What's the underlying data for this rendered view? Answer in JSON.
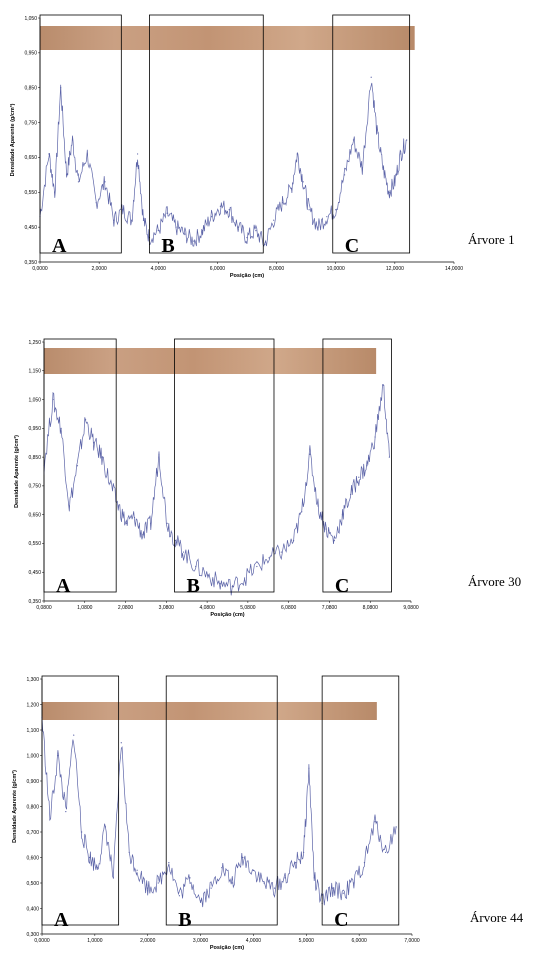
{
  "chart_data": [
    {
      "type": "line",
      "title": "",
      "xlabel": "Posição (cm)",
      "ylabel": "Densidade Aparente (g/cm³)",
      "xlim": [
        0,
        14
      ],
      "ylim": [
        0.35,
        1.05
      ],
      "xticks": [
        "0,0000",
        "2,0000",
        "4,0000",
        "6,0000",
        "8,0000",
        "10,0000",
        "12,0000",
        "14,0000"
      ],
      "yticks": [
        "0,350",
        "0,450",
        "0,550",
        "0,650",
        "0,750",
        "0,850",
        "0,950",
        "1,050"
      ],
      "tree_label": "Árvore 1",
      "regions": [
        {
          "label": "A",
          "x_start": 0.0,
          "x_end": 2.75
        },
        {
          "label": "B",
          "x_start": 3.7,
          "x_end": 7.55
        },
        {
          "label": "C",
          "x_start": 9.9,
          "x_end": 12.5
        }
      ],
      "x": [
        0.0,
        0.3,
        0.5,
        0.7,
        0.9,
        1.1,
        1.3,
        1.6,
        1.9,
        2.2,
        2.5,
        2.8,
        3.1,
        3.3,
        3.5,
        3.7,
        4.0,
        4.3,
        4.6,
        4.9,
        5.2,
        5.5,
        5.8,
        6.1,
        6.4,
        6.7,
        7.0,
        7.3,
        7.6,
        7.9,
        8.2,
        8.5,
        8.7,
        8.9,
        9.1,
        9.4,
        9.7,
        10.0,
        10.3,
        10.6,
        10.9,
        11.2,
        11.4,
        11.6,
        11.8,
        12.0,
        12.2,
        12.4
      ],
      "series": [
        {
          "values": [
            0.48,
            0.66,
            0.55,
            0.85,
            0.6,
            0.7,
            0.58,
            0.66,
            0.52,
            0.58,
            0.47,
            0.5,
            0.47,
            0.66,
            0.47,
            0.42,
            0.44,
            0.49,
            0.45,
            0.43,
            0.41,
            0.44,
            0.48,
            0.51,
            0.5,
            0.45,
            0.42,
            0.44,
            0.4,
            0.47,
            0.52,
            0.56,
            0.66,
            0.58,
            0.5,
            0.45,
            0.48,
            0.5,
            0.6,
            0.7,
            0.62,
            0.88,
            0.72,
            0.62,
            0.55,
            0.58,
            0.66,
            0.7
          ]
        }
      ]
    },
    {
      "type": "line",
      "title": "",
      "xlabel": "Posição (cm)",
      "ylabel": "Densidade Aparente (g/cm³)",
      "xlim": [
        0.08,
        9.08
      ],
      "ylim": [
        0.35,
        1.25
      ],
      "xticks": [
        "0,0800",
        "1,0800",
        "2,0800",
        "3,0800",
        "4,0800",
        "5,0800",
        "6,0800",
        "7,0800",
        "8,0800",
        "9,0800"
      ],
      "yticks": [
        "0,350",
        "0,450",
        "0,550",
        "0,650",
        "0,750",
        "0,850",
        "0,950",
        "1,050",
        "1,150",
        "1,250"
      ],
      "tree_label": "Árvore 30",
      "regions": [
        {
          "label": "A",
          "x_start": 0.08,
          "x_end": 1.85
        },
        {
          "label": "B",
          "x_start": 3.28,
          "x_end": 5.72
        },
        {
          "label": "C",
          "x_start": 6.92,
          "x_end": 8.6
        }
      ],
      "x": [
        0.08,
        0.3,
        0.5,
        0.7,
        0.9,
        1.1,
        1.3,
        1.5,
        1.7,
        1.9,
        2.1,
        2.3,
        2.5,
        2.7,
        2.9,
        3.1,
        3.3,
        3.5,
        3.8,
        4.1,
        4.4,
        4.7,
        5.0,
        5.3,
        5.6,
        5.9,
        6.2,
        6.4,
        6.6,
        6.8,
        7.0,
        7.2,
        7.4,
        7.6,
        7.8,
        8.0,
        8.2,
        8.4,
        8.55
      ],
      "series": [
        {
          "values": [
            0.82,
            1.05,
            0.95,
            0.68,
            0.82,
            0.98,
            0.9,
            0.85,
            0.76,
            0.68,
            0.62,
            0.64,
            0.58,
            0.62,
            0.86,
            0.62,
            0.56,
            0.52,
            0.47,
            0.44,
            0.41,
            0.4,
            0.43,
            0.47,
            0.5,
            0.52,
            0.56,
            0.66,
            0.86,
            0.68,
            0.6,
            0.56,
            0.65,
            0.72,
            0.78,
            0.82,
            0.92,
            1.1,
            0.85
          ]
        }
      ]
    },
    {
      "type": "line",
      "title": "",
      "xlabel": "Posição (cm)",
      "ylabel": "Densidade Aparente (g/cm³)",
      "xlim": [
        0,
        7
      ],
      "ylim": [
        0.3,
        1.3
      ],
      "xticks": [
        "0,0000",
        "1,0000",
        "2,0000",
        "3,0000",
        "4,0000",
        "5,0000",
        "6,0000",
        "7,0000"
      ],
      "yticks": [
        "0,300",
        "0,400",
        "0,500",
        "0,600",
        "0,700",
        "0,800",
        "0,900",
        "1,000",
        "1,100",
        "1,200",
        "1,300"
      ],
      "tree_label": "Árvore 44",
      "regions": [
        {
          "label": "A",
          "x_start": 0.0,
          "x_end": 1.45
        },
        {
          "label": "B",
          "x_start": 2.35,
          "x_end": 4.45
        },
        {
          "label": "C",
          "x_start": 5.3,
          "x_end": 6.75
        }
      ],
      "x": [
        0.0,
        0.15,
        0.3,
        0.45,
        0.6,
        0.75,
        0.9,
        1.05,
        1.2,
        1.35,
        1.5,
        1.65,
        1.8,
        2.0,
        2.2,
        2.4,
        2.6,
        2.8,
        3.0,
        3.2,
        3.4,
        3.6,
        3.8,
        4.0,
        4.2,
        4.4,
        4.6,
        4.8,
        4.95,
        5.05,
        5.15,
        5.3,
        5.5,
        5.7,
        5.9,
        6.1,
        6.3,
        6.5,
        6.7
      ],
      "series": [
        {
          "values": [
            1.15,
            0.75,
            1.0,
            0.78,
            1.08,
            0.7,
            0.6,
            0.56,
            0.72,
            0.52,
            1.05,
            0.62,
            0.55,
            0.48,
            0.5,
            0.58,
            0.45,
            0.52,
            0.43,
            0.48,
            0.56,
            0.5,
            0.6,
            0.55,
            0.5,
            0.48,
            0.52,
            0.58,
            0.62,
            0.95,
            0.52,
            0.42,
            0.48,
            0.46,
            0.5,
            0.58,
            0.74,
            0.62,
            0.72
          ]
        }
      ]
    }
  ]
}
